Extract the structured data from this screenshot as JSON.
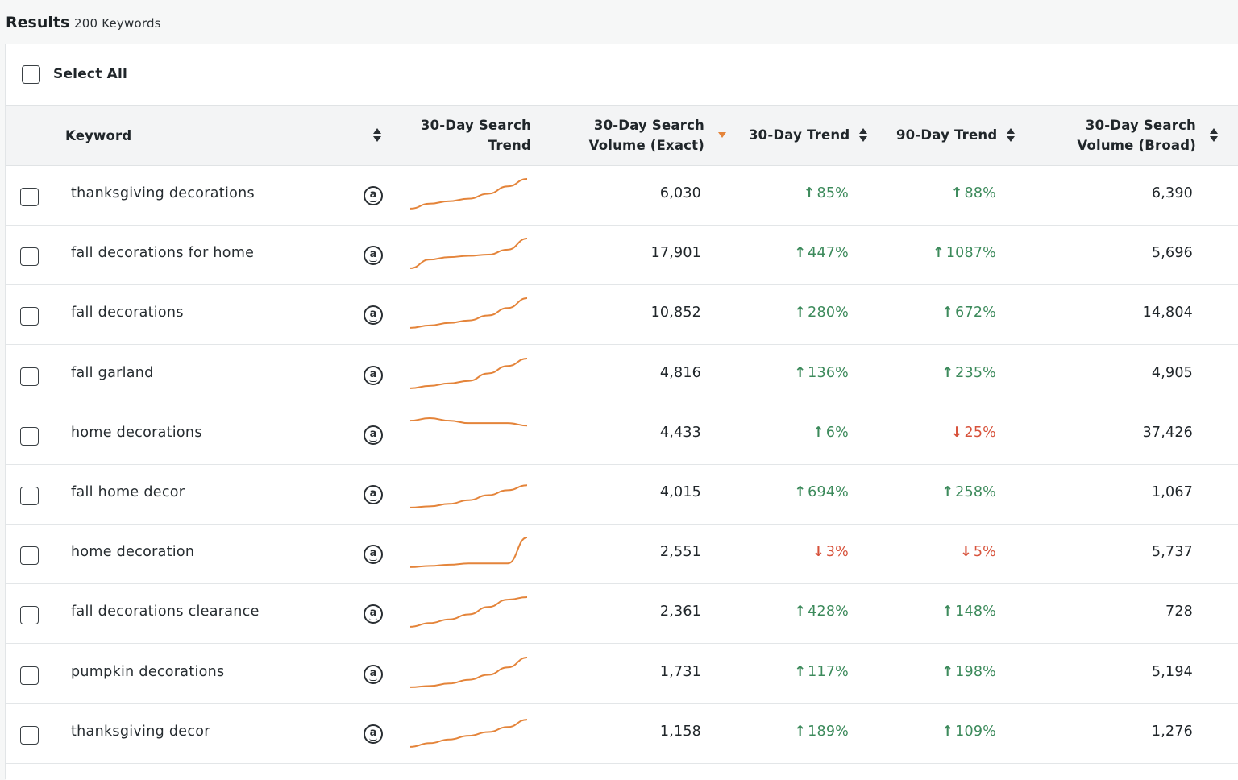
{
  "header": {
    "title": "Results",
    "count": "200 Keywords"
  },
  "select_all": {
    "label": "Select All"
  },
  "columns": {
    "keyword": "Keyword",
    "search_trend_line1": "30-Day Search",
    "search_trend_line2": "Trend",
    "volume_exact_line1": "30-Day Search",
    "volume_exact_line2": "Volume (Exact)",
    "trend30": "30-Day Trend",
    "trend90": "90-Day Trend",
    "volume_broad_line1": "30-Day Search",
    "volume_broad_line2": "Volume (Broad)"
  },
  "colors": {
    "up": "#3c8a5b",
    "down": "#d7523b",
    "sparkline": "#e4843a"
  },
  "rows": [
    {
      "keyword": "thanksgiving decorations",
      "volume_exact": "6,030",
      "trend30": "85%",
      "trend30_dir": "up",
      "trend90": "88%",
      "trend90_dir": "up",
      "volume_broad": "6,390",
      "spark": [
        2,
        6,
        8,
        10,
        14,
        20,
        26
      ]
    },
    {
      "keyword": "fall decorations for home",
      "volume_exact": "17,901",
      "trend30": "447%",
      "trend30_dir": "up",
      "trend90": "1087%",
      "trend90_dir": "up",
      "volume_broad": "5,696",
      "spark": [
        2,
        9,
        11,
        12,
        13,
        17,
        26
      ]
    },
    {
      "keyword": "fall decorations",
      "volume_exact": "10,852",
      "trend30": "280%",
      "trend30_dir": "up",
      "trend90": "672%",
      "trend90_dir": "up",
      "volume_broad": "14,804",
      "spark": [
        2,
        4,
        6,
        8,
        12,
        18,
        26
      ]
    },
    {
      "keyword": "fall garland",
      "volume_exact": "4,816",
      "trend30": "136%",
      "trend30_dir": "up",
      "trend90": "235%",
      "trend90_dir": "up",
      "volume_broad": "4,905",
      "spark": [
        2,
        4,
        6,
        8,
        14,
        20,
        26
      ]
    },
    {
      "keyword": "home decorations",
      "volume_exact": "4,433",
      "trend30": "6%",
      "trend30_dir": "up",
      "trend90": "25%",
      "trend90_dir": "down",
      "volume_broad": "37,426",
      "spark": [
        24,
        26,
        24,
        22,
        22,
        22,
        20
      ]
    },
    {
      "keyword": "fall home decor",
      "volume_exact": "4,015",
      "trend30": "694%",
      "trend30_dir": "up",
      "trend90": "258%",
      "trend90_dir": "up",
      "volume_broad": "1,067",
      "spark": [
        2,
        3,
        5,
        8,
        12,
        16,
        20
      ]
    },
    {
      "keyword": "home decoration",
      "volume_exact": "2,551",
      "trend30": "3%",
      "trend30_dir": "down",
      "trend90": "5%",
      "trend90_dir": "down",
      "volume_broad": "5,737",
      "spark": [
        2,
        3,
        4,
        5,
        5,
        5,
        26
      ]
    },
    {
      "keyword": "fall decorations clearance",
      "volume_exact": "2,361",
      "trend30": "428%",
      "trend30_dir": "up",
      "trend90": "148%",
      "trend90_dir": "up",
      "volume_broad": "728",
      "spark": [
        2,
        5,
        8,
        12,
        18,
        24,
        26
      ]
    },
    {
      "keyword": "pumpkin decorations",
      "volume_exact": "1,731",
      "trend30": "117%",
      "trend30_dir": "up",
      "trend90": "198%",
      "trend90_dir": "up",
      "volume_broad": "5,194",
      "spark": [
        2,
        3,
        5,
        8,
        12,
        18,
        26
      ]
    },
    {
      "keyword": "thanksgiving decor",
      "volume_exact": "1,158",
      "trend30": "189%",
      "trend30_dir": "up",
      "trend90": "109%",
      "trend90_dir": "up",
      "volume_broad": "1,276",
      "spark": [
        2,
        5,
        8,
        11,
        14,
        18,
        24
      ]
    }
  ]
}
